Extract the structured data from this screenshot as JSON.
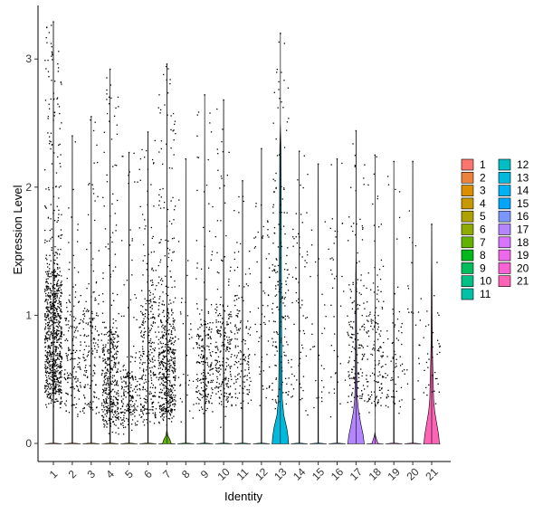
{
  "chart_data": {
    "type": "violin",
    "xlabel": "Identity",
    "ylabel": "Expression Level",
    "categories": [
      "1",
      "2",
      "3",
      "4",
      "5",
      "6",
      "7",
      "8",
      "9",
      "10",
      "11",
      "12",
      "13",
      "14",
      "15",
      "16",
      "17",
      "18",
      "19",
      "20",
      "21"
    ],
    "ylim": [
      -0.12,
      3.44
    ],
    "yticks": [
      0,
      1,
      2,
      3
    ],
    "grid": false,
    "legend_position": "right",
    "legend_columns": [
      [
        "1",
        "2",
        "3",
        "4",
        "5",
        "6",
        "7",
        "8",
        "9",
        "10",
        "11"
      ],
      [
        "12",
        "13",
        "14",
        "15",
        "16",
        "17",
        "18",
        "19",
        "20",
        "21"
      ]
    ],
    "colors": [
      "#F8766D",
      "#E88526",
      "#D39200",
      "#B79F00",
      "#93AA00",
      "#5EB300",
      "#00BA38",
      "#00BF74",
      "#00C19F",
      "#00BFC4",
      "#00B9E3",
      "#00ADFA",
      "#619CFF",
      "#AE87FF",
      "#DB72FB",
      "#F564E3",
      "#FF61C3",
      "#FF6C91",
      "#F8766D",
      "#E88526",
      "#D39200"
    ],
    "violin_colors": {
      "1": "#F8766D",
      "2": "#EC823C",
      "3": "#DB8E00",
      "4": "#C79800",
      "5": "#AEA200",
      "6": "#8FAA00",
      "7": "#64B200",
      "8": "#00B81B",
      "9": "#00BD5C",
      "10": "#00C085",
      "11": "#00C1A7",
      "12": "#00BFC4",
      "13": "#00BADE",
      "14": "#00B2F3",
      "15": "#00A6FF",
      "16": "#7C96FF",
      "17": "#B385FF",
      "18": "#D874FD",
      "19": "#EF67EB",
      "20": "#FD61D3",
      "21": "#FF63B6"
    },
    "series": [
      {
        "name": "1",
        "max": 3.29,
        "n_points": 900,
        "bulk_low": 0.35,
        "bulk_high": 1.3
      },
      {
        "name": "2",
        "max": 2.4,
        "n_points": 160,
        "bulk_low": 0.25,
        "bulk_high": 1.1
      },
      {
        "name": "3",
        "max": 2.55,
        "n_points": 170,
        "bulk_low": 0.25,
        "bulk_high": 1.1
      },
      {
        "name": "4",
        "max": 2.92,
        "n_points": 420,
        "bulk_low": 0.15,
        "bulk_high": 0.85
      },
      {
        "name": "5",
        "max": 2.27,
        "n_points": 200,
        "bulk_low": 0.15,
        "bulk_high": 0.55
      },
      {
        "name": "6",
        "max": 2.43,
        "n_points": 300,
        "bulk_low": 0.2,
        "bulk_high": 1.1
      },
      {
        "name": "7",
        "max": 2.96,
        "n_points": 560,
        "bulk_low": 0.2,
        "bulk_high": 1.0
      },
      {
        "name": "8",
        "max": 2.22,
        "n_points": 35,
        "bulk_low": 0.2,
        "bulk_high": 1.0
      },
      {
        "name": "9",
        "max": 2.72,
        "n_points": 220,
        "bulk_low": 0.3,
        "bulk_high": 0.9
      },
      {
        "name": "10",
        "max": 2.68,
        "n_points": 230,
        "bulk_low": 0.3,
        "bulk_high": 1.0
      },
      {
        "name": "11",
        "max": 2.05,
        "n_points": 140,
        "bulk_low": 0.3,
        "bulk_high": 1.1
      },
      {
        "name": "12",
        "max": 2.3,
        "n_points": 60,
        "bulk_low": 0.3,
        "bulk_high": 1.6
      },
      {
        "name": "13",
        "max": 3.2,
        "n_points": 170,
        "bulk_low": 0.3,
        "bulk_high": 1.8
      },
      {
        "name": "14",
        "max": 2.28,
        "n_points": 70,
        "bulk_low": 0.3,
        "bulk_high": 1.6
      },
      {
        "name": "15",
        "max": 2.18,
        "n_points": 30,
        "bulk_low": 0.3,
        "bulk_high": 1.4
      },
      {
        "name": "16",
        "max": 2.22,
        "n_points": 40,
        "bulk_low": 0.3,
        "bulk_high": 1.4
      },
      {
        "name": "17",
        "max": 2.44,
        "n_points": 160,
        "bulk_low": 0.3,
        "bulk_high": 1.2
      },
      {
        "name": "18",
        "max": 2.25,
        "n_points": 150,
        "bulk_low": 0.3,
        "bulk_high": 1.1
      },
      {
        "name": "19",
        "max": 2.2,
        "n_points": 70,
        "bulk_low": 0.3,
        "bulk_high": 0.9
      },
      {
        "name": "20",
        "max": 2.2,
        "n_points": 25,
        "bulk_low": 0.3,
        "bulk_high": 1.2
      },
      {
        "name": "21",
        "max": 1.71,
        "n_points": 35,
        "bulk_low": 0.3,
        "bulk_high": 1.0
      }
    ],
    "violin_shapes": {
      "7": [
        [
          0.0,
          0.5
        ],
        [
          0.03,
          0.35
        ],
        [
          0.06,
          0.12
        ],
        [
          0.1,
          0.02
        ],
        [
          1.8,
          0.0
        ]
      ],
      "13": [
        [
          0.0,
          0.95
        ],
        [
          0.05,
          0.9
        ],
        [
          0.12,
          0.75
        ],
        [
          0.22,
          0.4
        ],
        [
          0.35,
          0.22
        ],
        [
          0.55,
          0.18
        ],
        [
          0.9,
          0.14
        ],
        [
          1.3,
          0.12
        ],
        [
          1.8,
          0.1
        ],
        [
          2.3,
          0.07
        ],
        [
          2.5,
          0.0
        ]
      ],
      "17": [
        [
          0.0,
          0.95
        ],
        [
          0.06,
          0.85
        ],
        [
          0.14,
          0.6
        ],
        [
          0.25,
          0.3
        ],
        [
          0.35,
          0.15
        ],
        [
          0.55,
          0.08
        ],
        [
          0.9,
          0.06
        ],
        [
          1.3,
          0.04
        ],
        [
          1.5,
          0.0
        ]
      ],
      "18": [
        [
          0.0,
          0.35
        ],
        [
          0.03,
          0.2
        ],
        [
          0.06,
          0.06
        ],
        [
          0.09,
          0.0
        ]
      ],
      "21": [
        [
          0.0,
          0.9
        ],
        [
          0.07,
          0.8
        ],
        [
          0.15,
          0.6
        ],
        [
          0.25,
          0.35
        ],
        [
          0.35,
          0.22
        ],
        [
          0.5,
          0.18
        ],
        [
          0.62,
          0.12
        ],
        [
          0.8,
          0.07
        ],
        [
          1.2,
          0.04
        ],
        [
          1.71,
          0.0
        ]
      ]
    }
  }
}
